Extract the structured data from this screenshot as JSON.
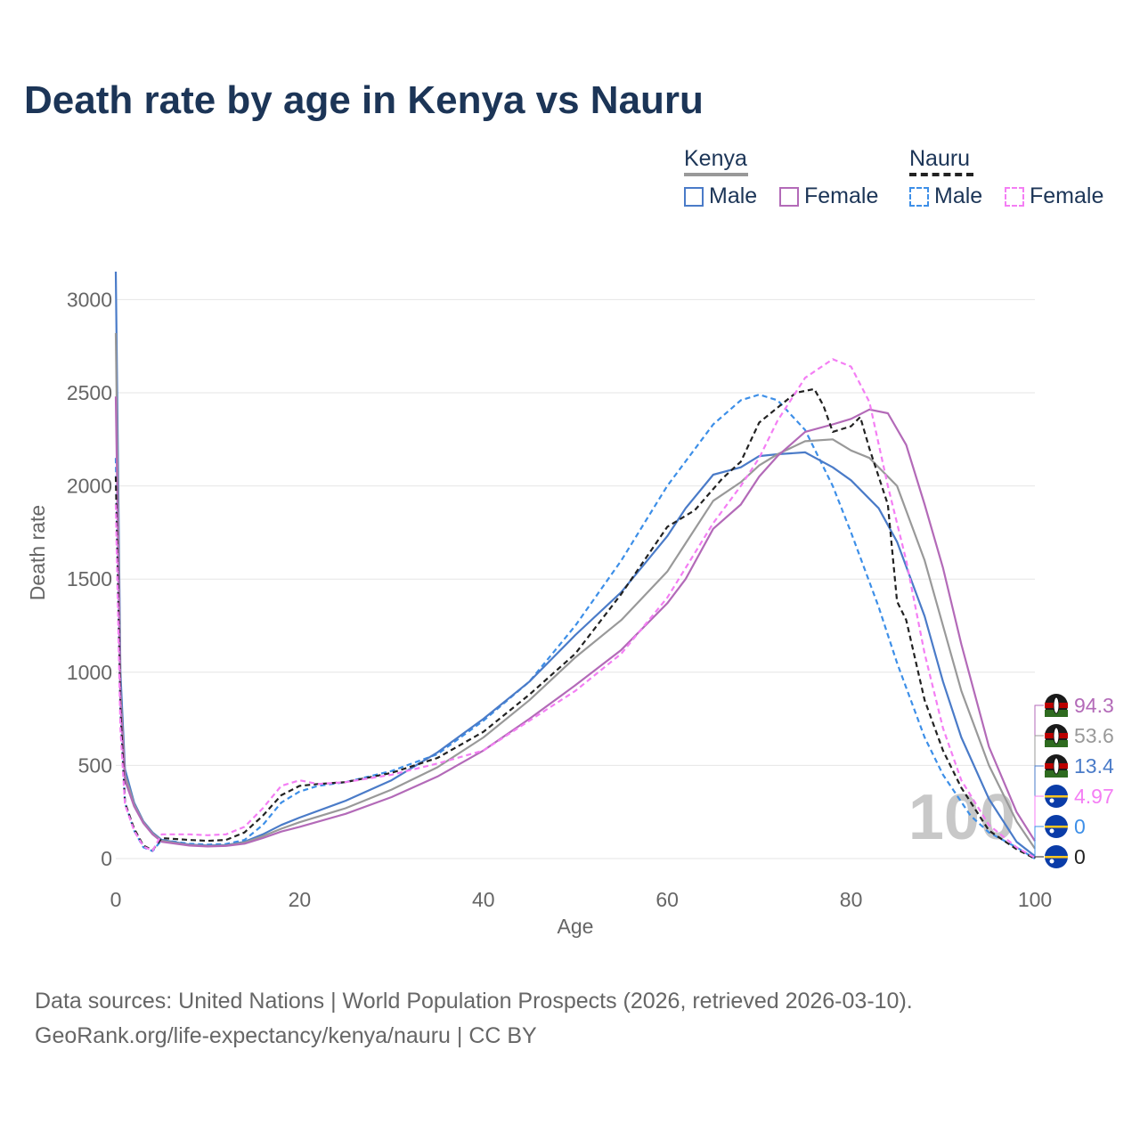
{
  "title": "Death rate by age in Kenya vs Nauru",
  "legend": {
    "groups": [
      {
        "name": "Kenya",
        "line_color": "#999999",
        "dash": false,
        "items": [
          {
            "label": "Male",
            "color": "#4a7bc8"
          },
          {
            "label": "Female",
            "color": "#b36ab8"
          }
        ]
      },
      {
        "name": "Nauru",
        "line_color": "#222222",
        "dash": true,
        "items": [
          {
            "label": "Male",
            "color": "#3d8fe8"
          },
          {
            "label": "Female",
            "color": "#f47ef4"
          }
        ]
      }
    ]
  },
  "footer": {
    "line1": "Data sources: United Nations | World Population Prospects (2026, retrieved 2026-03-10).",
    "line2": "GeoRank.org/life-expectancy/kenya/nauru | CC BY"
  },
  "watermark": "100",
  "chart_data": {
    "type": "line",
    "title": "Death rate by age in Kenya vs Nauru",
    "xlabel": "Age",
    "ylabel": "Death rate",
    "xlim": [
      0,
      100
    ],
    "ylim": [
      0,
      3150
    ],
    "xticks": [
      0,
      20,
      40,
      60,
      80,
      100
    ],
    "yticks": [
      0,
      500,
      1000,
      1500,
      2000,
      2500,
      3000
    ],
    "grid": true,
    "series": [
      {
        "name": "Nauru Male",
        "color": "#3d8fe8",
        "dash": true,
        "end_label": "0",
        "flag": "nauru",
        "points": [
          [
            0,
            2150
          ],
          [
            0.5,
            800
          ],
          [
            1,
            300
          ],
          [
            2,
            150
          ],
          [
            3,
            60
          ],
          [
            4,
            40
          ],
          [
            5,
            100
          ],
          [
            8,
            80
          ],
          [
            10,
            75
          ],
          [
            12,
            78
          ],
          [
            14,
            100
          ],
          [
            16,
            180
          ],
          [
            18,
            300
          ],
          [
            20,
            360
          ],
          [
            22,
            390
          ],
          [
            25,
            410
          ],
          [
            30,
            470
          ],
          [
            35,
            560
          ],
          [
            40,
            740
          ],
          [
            45,
            950
          ],
          [
            50,
            1250
          ],
          [
            55,
            1600
          ],
          [
            60,
            2000
          ],
          [
            65,
            2330
          ],
          [
            68,
            2460
          ],
          [
            70,
            2490
          ],
          [
            72,
            2460
          ],
          [
            75,
            2300
          ],
          [
            78,
            2000
          ],
          [
            80,
            1750
          ],
          [
            83,
            1350
          ],
          [
            85,
            1050
          ],
          [
            88,
            650
          ],
          [
            90,
            450
          ],
          [
            93,
            230
          ],
          [
            95,
            140
          ],
          [
            98,
            60
          ],
          [
            100,
            0
          ]
        ]
      },
      {
        "name": "Kenya Male",
        "color": "#4a7bc8",
        "dash": false,
        "end_label": "13.4",
        "flag": "kenya",
        "points": [
          [
            0,
            3150
          ],
          [
            0.5,
            1000
          ],
          [
            1,
            480
          ],
          [
            2,
            300
          ],
          [
            3,
            200
          ],
          [
            4,
            140
          ],
          [
            5,
            100
          ],
          [
            8,
            75
          ],
          [
            10,
            70
          ],
          [
            12,
            72
          ],
          [
            14,
            90
          ],
          [
            16,
            130
          ],
          [
            18,
            180
          ],
          [
            20,
            220
          ],
          [
            25,
            310
          ],
          [
            30,
            420
          ],
          [
            35,
            570
          ],
          [
            40,
            750
          ],
          [
            45,
            950
          ],
          [
            50,
            1200
          ],
          [
            55,
            1430
          ],
          [
            60,
            1730
          ],
          [
            62,
            1880
          ],
          [
            65,
            2060
          ],
          [
            68,
            2100
          ],
          [
            70,
            2160
          ],
          [
            72,
            2170
          ],
          [
            75,
            2180
          ],
          [
            78,
            2100
          ],
          [
            80,
            2030
          ],
          [
            83,
            1880
          ],
          [
            85,
            1700
          ],
          [
            88,
            1300
          ],
          [
            90,
            950
          ],
          [
            92,
            650
          ],
          [
            95,
            320
          ],
          [
            98,
            90
          ],
          [
            100,
            13.4
          ]
        ]
      },
      {
        "name": "Kenya Both",
        "color": "#999999",
        "dash": false,
        "end_label": "53.6",
        "flag": "kenya",
        "points": [
          [
            0,
            2820
          ],
          [
            0.5,
            900
          ],
          [
            1,
            450
          ],
          [
            2,
            290
          ],
          [
            3,
            195
          ],
          [
            4,
            135
          ],
          [
            5,
            95
          ],
          [
            8,
            72
          ],
          [
            10,
            67
          ],
          [
            12,
            70
          ],
          [
            14,
            86
          ],
          [
            16,
            120
          ],
          [
            18,
            160
          ],
          [
            20,
            195
          ],
          [
            25,
            270
          ],
          [
            30,
            370
          ],
          [
            35,
            490
          ],
          [
            40,
            650
          ],
          [
            45,
            850
          ],
          [
            50,
            1080
          ],
          [
            55,
            1280
          ],
          [
            60,
            1540
          ],
          [
            65,
            1920
          ],
          [
            68,
            2020
          ],
          [
            70,
            2110
          ],
          [
            72,
            2170
          ],
          [
            75,
            2240
          ],
          [
            78,
            2250
          ],
          [
            80,
            2190
          ],
          [
            82,
            2150
          ],
          [
            85,
            2000
          ],
          [
            88,
            1600
          ],
          [
            90,
            1250
          ],
          [
            92,
            900
          ],
          [
            95,
            500
          ],
          [
            98,
            200
          ],
          [
            100,
            53.6
          ]
        ]
      },
      {
        "name": "Kenya Female",
        "color": "#b36ab8",
        "dash": false,
        "end_label": "94.3",
        "flag": "kenya",
        "points": [
          [
            0,
            2480
          ],
          [
            0.5,
            850
          ],
          [
            1,
            420
          ],
          [
            2,
            280
          ],
          [
            3,
            190
          ],
          [
            4,
            130
          ],
          [
            5,
            90
          ],
          [
            8,
            70
          ],
          [
            10,
            65
          ],
          [
            12,
            68
          ],
          [
            14,
            80
          ],
          [
            16,
            110
          ],
          [
            18,
            145
          ],
          [
            20,
            170
          ],
          [
            25,
            240
          ],
          [
            30,
            330
          ],
          [
            35,
            440
          ],
          [
            40,
            580
          ],
          [
            45,
            750
          ],
          [
            50,
            930
          ],
          [
            55,
            1120
          ],
          [
            60,
            1370
          ],
          [
            62,
            1500
          ],
          [
            65,
            1770
          ],
          [
            68,
            1900
          ],
          [
            70,
            2050
          ],
          [
            72,
            2160
          ],
          [
            75,
            2290
          ],
          [
            78,
            2330
          ],
          [
            80,
            2360
          ],
          [
            82,
            2410
          ],
          [
            84,
            2390
          ],
          [
            86,
            2220
          ],
          [
            88,
            1900
          ],
          [
            90,
            1560
          ],
          [
            92,
            1150
          ],
          [
            95,
            600
          ],
          [
            98,
            250
          ],
          [
            100,
            94.3
          ]
        ]
      },
      {
        "name": "Nauru Both",
        "color": "#222222",
        "dash": true,
        "end_label": "0",
        "flag": "nauru",
        "points": [
          [
            0,
            2050
          ],
          [
            0.5,
            800
          ],
          [
            1,
            300
          ],
          [
            2,
            160
          ],
          [
            3,
            70
          ],
          [
            4,
            45
          ],
          [
            5,
            110
          ],
          [
            8,
            100
          ],
          [
            10,
            95
          ],
          [
            12,
            100
          ],
          [
            14,
            140
          ],
          [
            16,
            230
          ],
          [
            18,
            340
          ],
          [
            20,
            390
          ],
          [
            22,
            400
          ],
          [
            25,
            410
          ],
          [
            30,
            460
          ],
          [
            35,
            540
          ],
          [
            40,
            680
          ],
          [
            45,
            880
          ],
          [
            50,
            1100
          ],
          [
            55,
            1420
          ],
          [
            60,
            1780
          ],
          [
            63,
            1870
          ],
          [
            66,
            2040
          ],
          [
            68,
            2130
          ],
          [
            70,
            2340
          ],
          [
            72,
            2420
          ],
          [
            74,
            2500
          ],
          [
            76,
            2520
          ],
          [
            77,
            2430
          ],
          [
            78,
            2290
          ],
          [
            80,
            2320
          ],
          [
            81,
            2370
          ],
          [
            82,
            2200
          ],
          [
            84,
            1900
          ],
          [
            85,
            1380
          ],
          [
            86,
            1280
          ],
          [
            88,
            850
          ],
          [
            90,
            580
          ],
          [
            92,
            380
          ],
          [
            95,
            150
          ],
          [
            98,
            50
          ],
          [
            100,
            0
          ]
        ]
      },
      {
        "name": "Nauru Female",
        "color": "#f47ef4",
        "dash": true,
        "end_label": "4.97",
        "flag": "nauru",
        "points": [
          [
            0,
            1900
          ],
          [
            0.5,
            700
          ],
          [
            1,
            290
          ],
          [
            2,
            150
          ],
          [
            3,
            65
          ],
          [
            4,
            42
          ],
          [
            5,
            130
          ],
          [
            8,
            130
          ],
          [
            10,
            125
          ],
          [
            12,
            130
          ],
          [
            14,
            170
          ],
          [
            16,
            270
          ],
          [
            18,
            390
          ],
          [
            20,
            420
          ],
          [
            22,
            400
          ],
          [
            25,
            410
          ],
          [
            30,
            450
          ],
          [
            35,
            510
          ],
          [
            40,
            580
          ],
          [
            45,
            740
          ],
          [
            50,
            900
          ],
          [
            55,
            1100
          ],
          [
            60,
            1400
          ],
          [
            65,
            1800
          ],
          [
            68,
            2000
          ],
          [
            70,
            2150
          ],
          [
            72,
            2350
          ],
          [
            75,
            2580
          ],
          [
            78,
            2680
          ],
          [
            80,
            2640
          ],
          [
            82,
            2450
          ],
          [
            84,
            2000
          ],
          [
            86,
            1600
          ],
          [
            88,
            1100
          ],
          [
            90,
            700
          ],
          [
            92,
            420
          ],
          [
            95,
            180
          ],
          [
            98,
            60
          ],
          [
            100,
            4.97
          ]
        ]
      }
    ]
  }
}
